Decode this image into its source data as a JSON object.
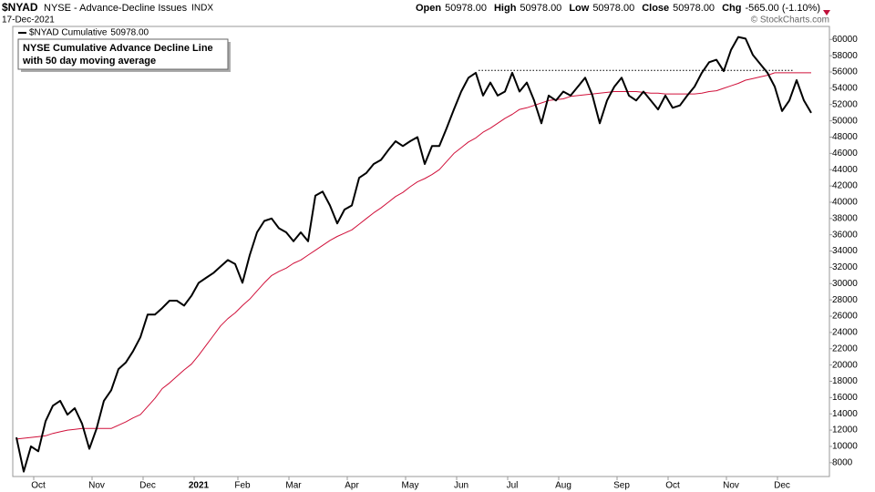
{
  "header": {
    "symbol": "$NYAD",
    "description": "NYSE - Advance-Decline Issues",
    "exchange": "INDX",
    "date": "17-Dec-2021",
    "quote": [
      {
        "label": "Open",
        "value": "50978.00"
      },
      {
        "label": "High",
        "value": "50978.00"
      },
      {
        "label": "Low",
        "value": "50978.00"
      },
      {
        "label": "Close",
        "value": "50978.00"
      },
      {
        "label": "Chg",
        "value": "-565.00 (-1.10%)"
      }
    ],
    "credit": "© StockCharts.com"
  },
  "chart_data": {
    "type": "line",
    "annotation": [
      "NYSE Cumulative Advance Decline Line",
      "with 50 day moving average"
    ],
    "legend_value": "50978.00",
    "reference_line": 56200,
    "categories": [
      null,
      null,
      null,
      "Oct",
      null,
      null,
      null,
      null,
      null,
      null,
      null,
      "Nov",
      null,
      null,
      null,
      null,
      null,
      null,
      "Dec",
      null,
      null,
      null,
      null,
      null,
      null,
      "2021",
      null,
      null,
      null,
      null,
      null,
      "Feb",
      null,
      null,
      null,
      null,
      null,
      null,
      "Mar",
      null,
      null,
      null,
      null,
      null,
      null,
      null,
      "Apr",
      null,
      null,
      null,
      null,
      null,
      null,
      null,
      "May",
      null,
      null,
      null,
      null,
      null,
      null,
      "Jun",
      null,
      null,
      null,
      null,
      null,
      null,
      "Jul",
      null,
      null,
      null,
      null,
      null,
      null,
      "Aug",
      null,
      null,
      null,
      null,
      null,
      null,
      null,
      "Sep",
      null,
      null,
      null,
      null,
      null,
      null,
      "Oct",
      null,
      null,
      null,
      null,
      null,
      null,
      null,
      "Nov",
      null,
      null,
      null,
      null,
      null,
      null,
      "Dec",
      null,
      null,
      null,
      null
    ],
    "series": [
      {
        "name": "$NYAD Cumulative",
        "color": "#000000",
        "width": 2,
        "values": [
          11100,
          6900,
          10000,
          9400,
          13100,
          15000,
          15600,
          13900,
          14700,
          12800,
          9700,
          12200,
          15600,
          16900,
          19500,
          20300,
          21700,
          23400,
          26200,
          26200,
          27000,
          27900,
          27900,
          27300,
          28500,
          30100,
          30700,
          31300,
          32100,
          32900,
          32400,
          30100,
          33500,
          36300,
          37700,
          38000,
          36800,
          36300,
          35200,
          36300,
          35200,
          40800,
          41300,
          39600,
          37400,
          39100,
          39600,
          43000,
          43600,
          44700,
          45200,
          46400,
          47500,
          46900,
          47500,
          48000,
          44700,
          46900,
          46900,
          49100,
          51400,
          53600,
          55300,
          55900,
          53100,
          54700,
          53100,
          53600,
          55900,
          53600,
          54700,
          52500,
          49700,
          53100,
          52500,
          53600,
          53100,
          54200,
          55300,
          53100,
          49700,
          52500,
          54200,
          55300,
          53100,
          52500,
          53600,
          52500,
          51400,
          53100,
          51600,
          51900,
          53100,
          54200,
          55900,
          57200,
          57500,
          56100,
          58700,
          60300,
          60100,
          58100,
          57000,
          55900,
          54200,
          51200,
          52500,
          55000,
          52500,
          50978
        ]
      },
      {
        "color": "#d0103a",
        "width": 1,
        "values": [
          10900,
          11000,
          11100,
          11200,
          11300,
          11600,
          11800,
          12000,
          12100,
          12200,
          12200,
          12200,
          12200,
          12200,
          12600,
          13000,
          13500,
          13900,
          14900,
          15900,
          17100,
          17800,
          18600,
          19400,
          20100,
          21200,
          22400,
          23600,
          24800,
          25700,
          26400,
          27300,
          28100,
          29100,
          30100,
          31000,
          31500,
          31900,
          32500,
          32900,
          33500,
          34100,
          34700,
          35300,
          35800,
          36200,
          36600,
          37300,
          38000,
          38700,
          39300,
          40000,
          40700,
          41200,
          41900,
          42500,
          42900,
          43400,
          44000,
          45000,
          46000,
          46700,
          47400,
          47900,
          48600,
          49100,
          49700,
          50300,
          50800,
          51400,
          51600,
          51900,
          52200,
          52500,
          52600,
          52700,
          53000,
          53100,
          53200,
          53300,
          53400,
          53500,
          53600,
          53600,
          53600,
          53600,
          53500,
          53400,
          53400,
          53300,
          53300,
          53300,
          53300,
          53300,
          53400,
          53600,
          53700,
          54000,
          54300,
          54600,
          55000,
          55200,
          55400,
          55600,
          55900,
          55900,
          55900,
          55900,
          55900,
          55900
        ]
      }
    ],
    "ylim": [
      6300,
      61600
    ],
    "yticks": [
      8000,
      10000,
      12000,
      14000,
      16000,
      18000,
      20000,
      22000,
      24000,
      26000,
      28000,
      30000,
      32000,
      34000,
      36000,
      38000,
      40000,
      42000,
      44000,
      46000,
      48000,
      50000,
      52000,
      54000,
      56000,
      58000,
      60000
    ],
    "grid": false
  }
}
